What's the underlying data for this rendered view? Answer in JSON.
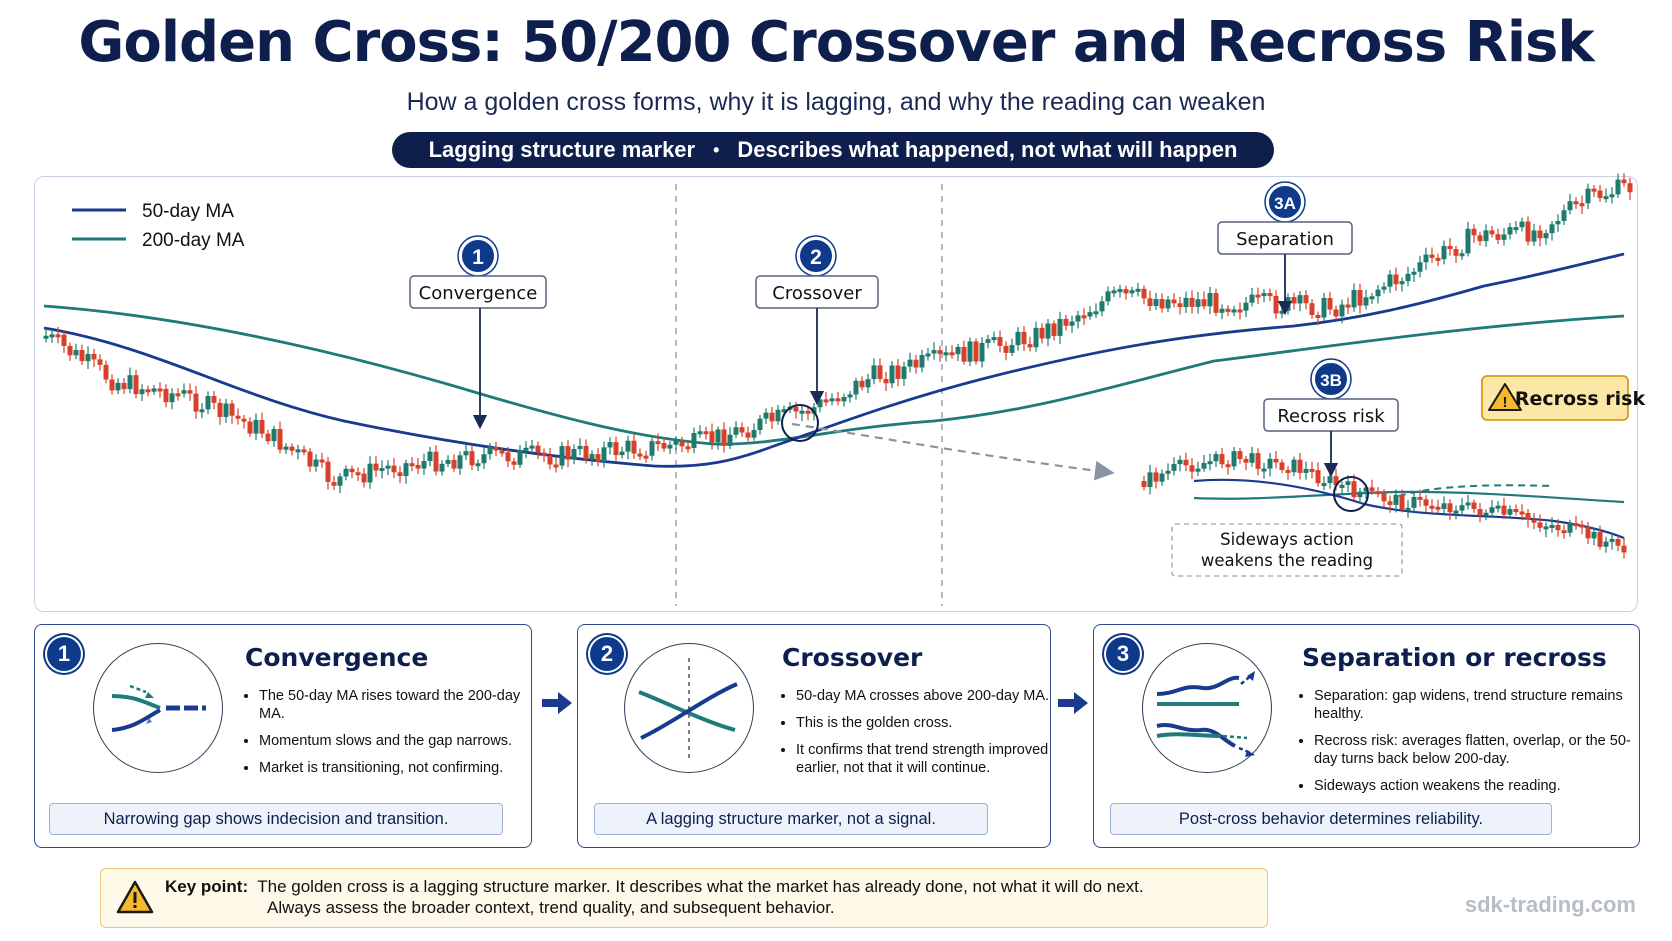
{
  "header": {
    "title": "Golden Cross: 50/200 Crossover and Recross Risk",
    "subtitle": "How a golden cross forms, why it is lagging, and why the reading can weaken",
    "banner_left": "Lagging structure marker",
    "banner_sep": "•",
    "banner_right": "Describes what happened, not what will happen"
  },
  "chart": {
    "legend": [
      {
        "label": "50-day MA",
        "color": "#1a3a8f"
      },
      {
        "label": "200-day MA",
        "color": "#1f7a7a"
      }
    ],
    "callouts": [
      {
        "badge": "1",
        "label": "Convergence"
      },
      {
        "badge": "2",
        "label": "Crossover"
      },
      {
        "badge": "3A",
        "label": "Separation"
      },
      {
        "badge": "3B",
        "label": "Recross risk"
      }
    ],
    "warning_tag": "Recross risk",
    "sideways_note": [
      "Sideways action",
      "weakens the reading"
    ],
    "colors": {
      "up": "#1f7a6e",
      "down": "#d8402a",
      "navy": "#0f3a8c",
      "gold": "#e8a317"
    }
  },
  "cards": [
    {
      "number": "1",
      "title": "Convergence",
      "bullets": [
        "The 50-day MA rises toward the 200-day MA.",
        "Momentum slows and the gap narrows.",
        "Market is transitioning, not confirming."
      ],
      "footer": "Narrowing gap shows indecision and transition."
    },
    {
      "number": "2",
      "title": "Crossover",
      "bullets": [
        "50-day MA crosses above 200-day MA.",
        "This is the golden cross.",
        "It confirms that trend strength improved earlier, not that it will continue."
      ],
      "footer": "A lagging structure marker, not a signal."
    },
    {
      "number": "3",
      "title": "Separation or recross",
      "bullets": [
        "Separation: gap widens, trend structure remains healthy.",
        "Recross risk: averages flatten, overlap, or the 50-day turns back below 200-day.",
        "Sideways action weakens the reading."
      ],
      "footer": "Post-cross behavior determines reliability."
    }
  ],
  "key_point": {
    "label": "Key point:",
    "line1": "The golden cross is a lagging structure marker. It describes what the market has already done, not what it will do next.",
    "line2": "Always assess the broader context, trend quality, and subsequent behavior."
  },
  "footer_url": "sdk-trading.com"
}
